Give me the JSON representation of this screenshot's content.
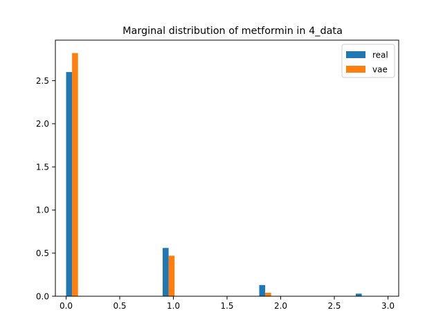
{
  "chart_data": {
    "type": "bar",
    "title": "Marginal distribution of metformin in 4_data",
    "xlabel": "",
    "ylabel": "",
    "xlim": [
      -0.1,
      3.1
    ],
    "ylim": [
      0,
      2.97
    ],
    "xticks": [
      0.0,
      0.5,
      1.0,
      1.5,
      2.0,
      2.5,
      3.0
    ],
    "xtick_labels": [
      "0.0",
      "0.5",
      "1.0",
      "1.5",
      "2.0",
      "2.5",
      "3.0"
    ],
    "yticks": [
      0.0,
      0.5,
      1.0,
      1.5,
      2.0,
      2.5
    ],
    "ytick_labels": [
      "0.0",
      "0.5",
      "1.0",
      "1.5",
      "2.0",
      "2.5"
    ],
    "bin_width": 0.111,
    "bar_positions": [
      0.0,
      0.9,
      1.8,
      2.7
    ],
    "series": [
      {
        "name": "real",
        "color": "#1f77b4",
        "values": [
          2.6,
          0.56,
          0.13,
          0.03
        ]
      },
      {
        "name": "vae",
        "color": "#ff7f0e",
        "values": [
          2.82,
          0.47,
          0.04,
          0.0
        ]
      }
    ],
    "legend": "top-right",
    "grid": false
  }
}
